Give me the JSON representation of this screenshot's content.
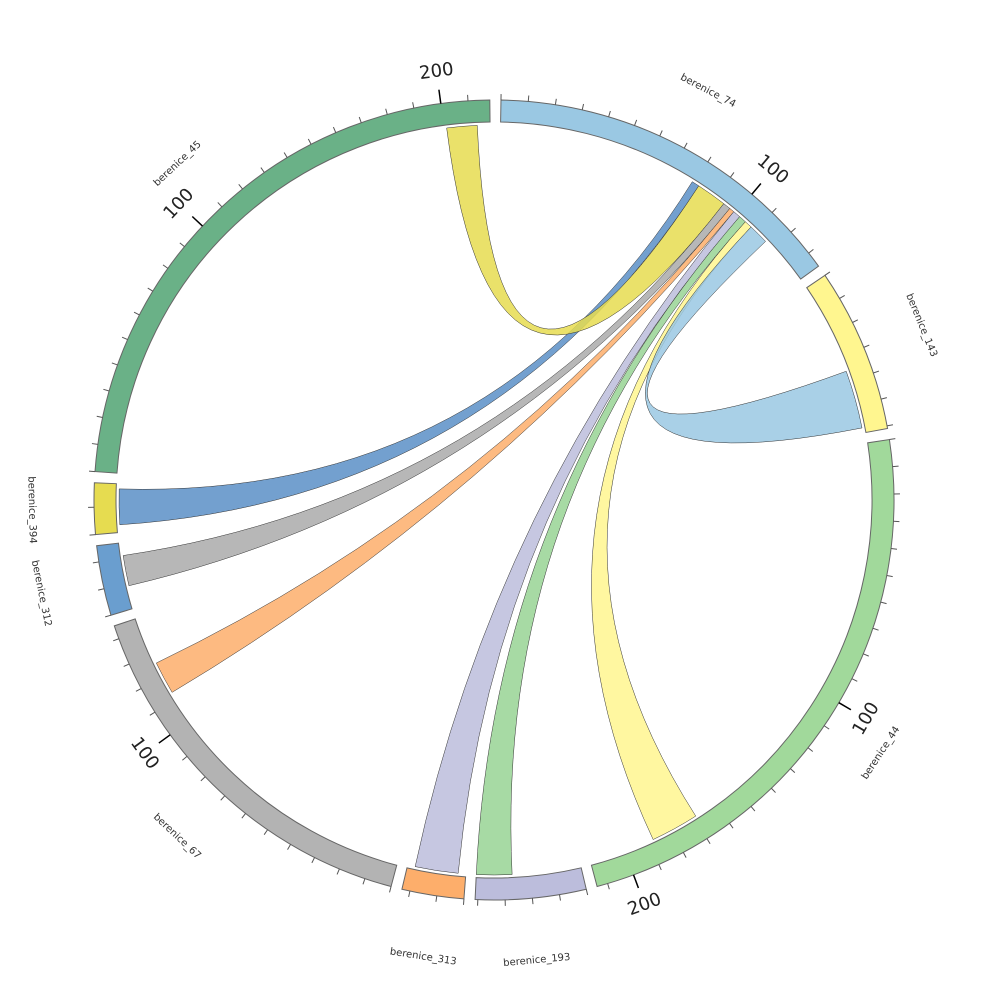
{
  "chart_data": {
    "type": "chord",
    "tick_step": 10,
    "major_ticks": [
      100,
      200
    ],
    "segments": [
      {
        "name": "berenice_74",
        "length": 136,
        "color": "#9ac8e3"
      },
      {
        "name": "berenice_143",
        "length": 61,
        "color": "#fff68f"
      },
      {
        "name": "berenice_44",
        "length": 214,
        "color": "#a1d99b"
      },
      {
        "name": "berenice_193",
        "length": 41,
        "color": "#bcbddc"
      },
      {
        "name": "berenice_313",
        "length": 23,
        "color": "#fdae6b"
      },
      {
        "name": "berenice_67",
        "length": 145,
        "color": "#b3b3b3"
      },
      {
        "name": "berenice_312",
        "length": 26,
        "color": "#6a9ecf"
      },
      {
        "name": "berenice_394",
        "length": 19,
        "color": "#e6dc50"
      },
      {
        "name": "berenice_45",
        "length": 218,
        "color": "#6ab187"
      }
    ],
    "links": [
      {
        "source": "berenice_74",
        "source_range": [
          79,
          82
        ],
        "target": "berenice_394",
        "target_range": [
          3,
          17
        ],
        "color": "#5b8fc7"
      },
      {
        "source": "berenice_74",
        "source_range": [
          82,
          94
        ],
        "target": "berenice_45",
        "target_range": [
          201,
          213
        ],
        "color": "#e6dc50"
      },
      {
        "source": "berenice_74",
        "source_range": [
          94,
          97
        ],
        "target": "berenice_312",
        "target_range": [
          9,
          21
        ],
        "color": "#aaaaaa"
      },
      {
        "source": "berenice_74",
        "source_range": [
          97,
          99
        ],
        "target": "berenice_67",
        "target_range": [
          113,
          126
        ],
        "color": "#fdae6b"
      },
      {
        "source": "berenice_74",
        "source_range": [
          99,
          102
        ],
        "target": "berenice_313",
        "target_range": [
          3,
          20
        ],
        "color": "#bcbddc"
      },
      {
        "source": "berenice_74",
        "source_range": [
          102,
          105
        ],
        "target": "berenice_193",
        "target_range": [
          27,
          41
        ],
        "color": "#98d494"
      },
      {
        "source": "berenice_74",
        "source_range": [
          105,
          108
        ],
        "target": "berenice_44",
        "target_range": [
          169,
          188
        ],
        "color": "#fff68f"
      },
      {
        "source": "berenice_74",
        "source_range": [
          108,
          116
        ],
        "target": "berenice_143",
        "target_range": [
          36,
          59
        ],
        "color": "#9ac8e3"
      }
    ]
  }
}
